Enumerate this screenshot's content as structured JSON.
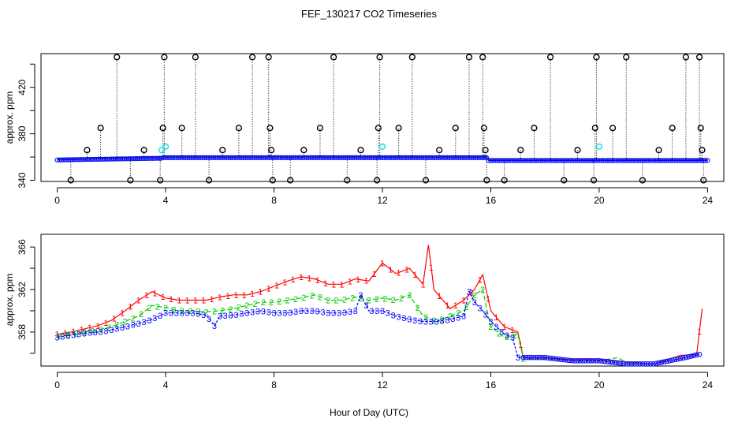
{
  "figure": {
    "title": "FEF_130217  CO2 Timeseries",
    "xlabel": "Hour of Day (UTC)"
  },
  "colors": {
    "series1": "#ff0000",
    "series2": "#00cc00",
    "series3": "#0000ff",
    "raw": "#000000",
    "cal": "#00e5ee",
    "axis": "#000000"
  },
  "chart_data": [
    {
      "type": "scatter",
      "panel": "top",
      "title": "FEF_130217  CO2 Timeseries",
      "xlabel": "",
      "ylabel": "approx. ppm",
      "xlim": [
        -0.6,
        24.6
      ],
      "ylim": [
        339,
        449
      ],
      "xticks": [
        0,
        4,
        8,
        12,
        16,
        20,
        24
      ],
      "yticks": [
        340,
        360,
        380,
        400,
        420,
        440
      ],
      "ytick_labels": [
        "340",
        "",
        "380",
        "",
        "420",
        ""
      ],
      "grid": false,
      "segments": [
        {
          "start": 0.0,
          "end": 3.9,
          "level_start": 357.5,
          "level_end": 359.0
        },
        {
          "start": 3.9,
          "end": 15.9,
          "level_start": 359.5,
          "level_end": 359.5
        },
        {
          "start": 15.9,
          "end": 24.0,
          "level_start": 357.0,
          "level_end": 357.0
        }
      ],
      "series_offsets": [
        1.5,
        0.8,
        0
      ],
      "spikes": [
        {
          "x": 0.5,
          "y": 340
        },
        {
          "x": 1.1,
          "y": 366
        },
        {
          "x": 1.6,
          "y": 385
        },
        {
          "x": 2.2,
          "y": 446
        },
        {
          "x": 2.7,
          "y": 340
        },
        {
          "x": 3.2,
          "y": 366
        },
        {
          "x": 3.8,
          "y": 340
        },
        {
          "x": 3.9,
          "y": 385
        },
        {
          "x": 3.95,
          "y": 446
        },
        {
          "x": 4.6,
          "y": 385
        },
        {
          "x": 5.1,
          "y": 446
        },
        {
          "x": 5.6,
          "y": 340
        },
        {
          "x": 6.1,
          "y": 366
        },
        {
          "x": 6.7,
          "y": 385
        },
        {
          "x": 7.2,
          "y": 446
        },
        {
          "x": 7.8,
          "y": 446
        },
        {
          "x": 7.85,
          "y": 385
        },
        {
          "x": 7.9,
          "y": 366
        },
        {
          "x": 7.95,
          "y": 340
        },
        {
          "x": 8.6,
          "y": 340
        },
        {
          "x": 9.1,
          "y": 366
        },
        {
          "x": 9.7,
          "y": 385
        },
        {
          "x": 10.2,
          "y": 446
        },
        {
          "x": 10.7,
          "y": 340
        },
        {
          "x": 11.2,
          "y": 366
        },
        {
          "x": 11.8,
          "y": 340
        },
        {
          "x": 11.85,
          "y": 385
        },
        {
          "x": 11.9,
          "y": 446
        },
        {
          "x": 12.6,
          "y": 385
        },
        {
          "x": 13.1,
          "y": 446
        },
        {
          "x": 13.6,
          "y": 340
        },
        {
          "x": 14.1,
          "y": 366
        },
        {
          "x": 14.7,
          "y": 385
        },
        {
          "x": 15.2,
          "y": 446
        },
        {
          "x": 15.7,
          "y": 446
        },
        {
          "x": 15.75,
          "y": 385
        },
        {
          "x": 15.8,
          "y": 366
        },
        {
          "x": 15.85,
          "y": 340
        },
        {
          "x": 16.5,
          "y": 340
        },
        {
          "x": 17.1,
          "y": 366
        },
        {
          "x": 17.6,
          "y": 385
        },
        {
          "x": 18.2,
          "y": 446
        },
        {
          "x": 18.7,
          "y": 340
        },
        {
          "x": 19.2,
          "y": 366
        },
        {
          "x": 19.8,
          "y": 340
        },
        {
          "x": 19.85,
          "y": 385
        },
        {
          "x": 19.9,
          "y": 446
        },
        {
          "x": 20.5,
          "y": 385
        },
        {
          "x": 21.0,
          "y": 446
        },
        {
          "x": 21.6,
          "y": 340
        },
        {
          "x": 22.2,
          "y": 366
        },
        {
          "x": 22.7,
          "y": 385
        },
        {
          "x": 23.2,
          "y": 446
        },
        {
          "x": 23.7,
          "y": 446
        },
        {
          "x": 23.75,
          "y": 385
        },
        {
          "x": 23.8,
          "y": 366
        },
        {
          "x": 23.85,
          "y": 340
        }
      ],
      "cal_points": [
        {
          "x": 3.85,
          "y": 366
        },
        {
          "x": 4.0,
          "y": 369
        },
        {
          "x": 12.0,
          "y": 369
        },
        {
          "x": 20.0,
          "y": 369
        }
      ]
    },
    {
      "type": "line",
      "panel": "bottom",
      "xlabel": "Hour of Day (UTC)",
      "ylabel": "approx. ppm",
      "xlim": [
        -0.6,
        24.6
      ],
      "ylim": [
        354.8,
        367.2
      ],
      "xticks": [
        0,
        4,
        8,
        12,
        16,
        20,
        24
      ],
      "yticks": [
        356,
        358,
        360,
        362,
        364,
        366
      ],
      "ytick_labels": [
        "",
        "358",
        "",
        "362",
        "",
        "366"
      ],
      "grid": false,
      "marker_labels": [
        "1",
        "2",
        "3"
      ],
      "series": [
        {
          "name": "1",
          "x": [
            0.0,
            0.5,
            1.0,
            1.5,
            2.0,
            2.5,
            3.0,
            3.5,
            4.0,
            4.5,
            5.0,
            5.5,
            6.0,
            6.5,
            7.0,
            7.5,
            8.0,
            8.5,
            9.0,
            9.5,
            10.0,
            10.5,
            11.0,
            11.5,
            12.0,
            12.5,
            13.0,
            13.5,
            13.7,
            13.9,
            14.5,
            15.0,
            15.4,
            15.7,
            16.0,
            16.5,
            17.0,
            17.2,
            17.5,
            18.0,
            19.0,
            20.0,
            21.0,
            22.0,
            23.0,
            23.6,
            23.8
          ],
          "values": [
            357.8,
            358.0,
            358.3,
            358.6,
            359.1,
            360.0,
            361.0,
            361.8,
            361.2,
            361.0,
            361.0,
            361.0,
            361.3,
            361.5,
            361.5,
            361.8,
            362.3,
            362.8,
            363.2,
            363.0,
            362.5,
            362.5,
            363.0,
            362.8,
            364.5,
            363.5,
            364.0,
            362.5,
            366.2,
            362.0,
            360.2,
            361.0,
            362.0,
            363.4,
            360.0,
            358.5,
            358.0,
            355.6,
            355.6,
            355.6,
            355.4,
            355.4,
            355.2,
            355.0,
            355.8,
            355.9,
            360.2
          ]
        },
        {
          "name": "2",
          "x": [
            0.0,
            0.5,
            1.0,
            1.5,
            2.0,
            2.5,
            3.0,
            3.5,
            4.0,
            4.5,
            5.0,
            5.5,
            6.0,
            6.5,
            7.0,
            7.5,
            8.0,
            8.5,
            9.0,
            9.5,
            10.0,
            10.5,
            11.0,
            11.5,
            12.0,
            12.5,
            13.0,
            13.5,
            14.0,
            14.5,
            15.0,
            15.4,
            15.7,
            16.0,
            16.5,
            17.0,
            17.2,
            17.5,
            18.0,
            19.0,
            20.0,
            20.7,
            21.0,
            22.0,
            23.0,
            23.7
          ],
          "values": [
            357.6,
            357.8,
            358.0,
            358.2,
            358.5,
            359.0,
            359.5,
            360.5,
            360.3,
            360.0,
            360.0,
            359.9,
            360.0,
            360.2,
            360.5,
            360.8,
            360.8,
            361.0,
            361.2,
            361.5,
            361.0,
            361.0,
            361.3,
            361.0,
            361.2,
            361.0,
            361.5,
            359.5,
            359.0,
            359.5,
            360.0,
            361.5,
            362.0,
            358.5,
            357.5,
            357.8,
            355.5,
            355.5,
            355.5,
            355.3,
            355.3,
            355.6,
            355.1,
            355.0,
            355.5,
            355.9
          ]
        },
        {
          "name": "3",
          "x": [
            0.0,
            0.5,
            1.0,
            1.5,
            2.0,
            2.5,
            3.0,
            3.5,
            4.0,
            4.5,
            5.0,
            5.5,
            5.8,
            6.0,
            6.5,
            7.0,
            7.5,
            8.0,
            8.5,
            9.0,
            9.5,
            10.0,
            10.5,
            11.0,
            11.2,
            11.5,
            12.0,
            12.5,
            13.0,
            13.5,
            14.0,
            14.5,
            15.0,
            15.2,
            15.4,
            15.7,
            16.0,
            16.5,
            16.8,
            17.0,
            17.5,
            18.0,
            19.0,
            20.0,
            21.0,
            22.0,
            23.0,
            23.7
          ],
          "values": [
            357.5,
            357.7,
            357.9,
            358.0,
            358.2,
            358.5,
            358.8,
            359.2,
            359.8,
            359.8,
            359.8,
            359.6,
            358.6,
            359.5,
            359.6,
            359.8,
            360.0,
            359.8,
            359.8,
            360.0,
            360.0,
            359.8,
            359.8,
            360.0,
            361.5,
            360.0,
            360.0,
            359.5,
            359.2,
            359.0,
            359.0,
            359.2,
            359.5,
            361.8,
            360.8,
            360.0,
            359.0,
            357.8,
            357.5,
            355.6,
            355.6,
            355.6,
            355.3,
            355.3,
            355.0,
            355.0,
            355.5,
            355.9
          ]
        }
      ]
    }
  ]
}
